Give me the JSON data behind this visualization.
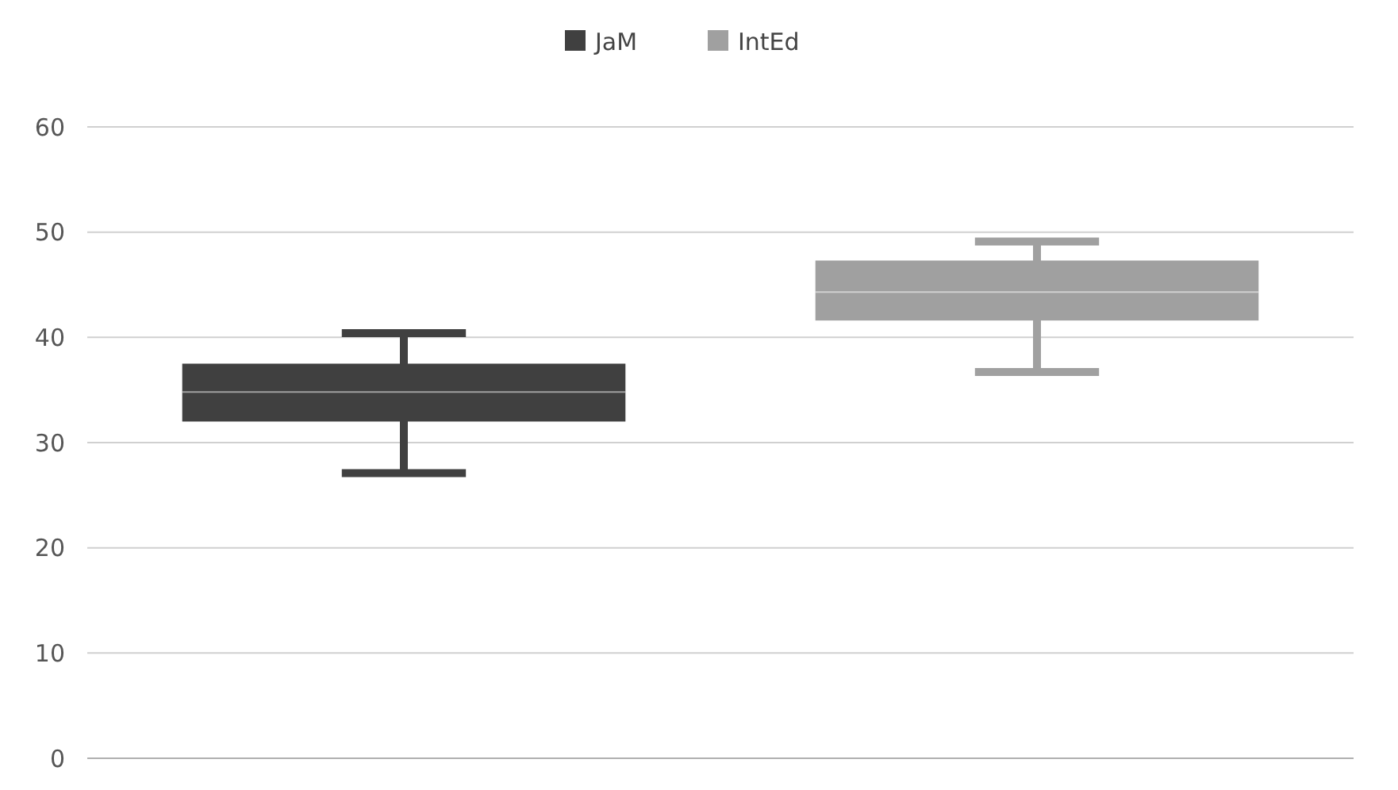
{
  "chart_data": {
    "type": "box",
    "categories": [
      null,
      null
    ],
    "ylim": [
      0,
      60
    ],
    "yticks": [
      0,
      10,
      20,
      30,
      40,
      50,
      60
    ],
    "grid": "y",
    "legend": "top",
    "series": [
      {
        "name": "JaM",
        "color": "#404040",
        "boxes": [
          {
            "low": 27.1,
            "q1": 32,
            "median": 34.8,
            "q3": 37.5,
            "high": 40.4
          },
          null
        ]
      },
      {
        "name": "IntEd",
        "color": "#a0a0a0",
        "boxes": [
          null,
          {
            "low": 36.7,
            "q1": 41.6,
            "median": 44.3,
            "q3": 47.3,
            "high": 49.1
          }
        ]
      }
    ]
  }
}
